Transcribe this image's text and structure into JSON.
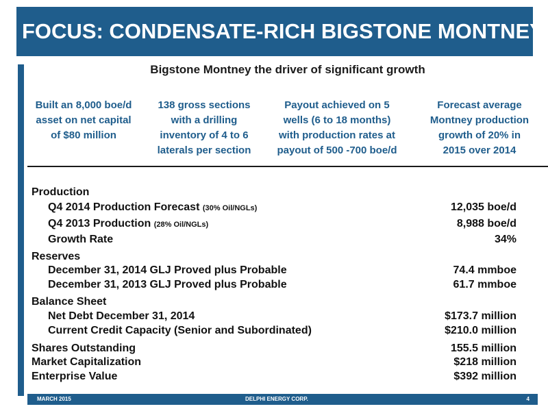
{
  "header": {
    "title": "FOCUS:  CONDENSATE-RICH BIGSTONE MONTNEY"
  },
  "subtitle": "Bigstone Montney the driver of significant growth",
  "highlights": [
    {
      "lines": [
        "Built an 8,000 boe/d",
        "asset on net capital",
        "of $80 million"
      ]
    },
    {
      "lines": [
        "138 gross sections",
        "with a drilling",
        "inventory of 4 to 6",
        "laterals per section"
      ]
    },
    {
      "lines": [
        "Payout achieved on 5",
        "wells (6 to 18 months)",
        "with  production rates at",
        "payout of 500 -700 boe/d"
      ]
    },
    {
      "lines": [
        "Forecast average",
        "Montney production",
        "growth of 20% in",
        "2015 over 2014"
      ]
    }
  ],
  "production": {
    "heading": "Production",
    "q4_2014_label": "Q4 2014 Production Forecast",
    "q4_2014_note": "(30% Oil/NGLs)",
    "q4_2014_value": "12,035 boe/d",
    "q4_2013_label": "Q4 2013 Production",
    "q4_2013_note": "(28% Oil/NGLs)",
    "q4_2013_value": "8,988 boe/d",
    "growth_label": "Growth Rate",
    "growth_value": "34%"
  },
  "reserves": {
    "heading": "Reserves",
    "r2014_label": "December 31, 2014 GLJ Proved plus Probable",
    "r2014_value": "74.4 mmboe",
    "r2013_label": "December 31, 2013 GLJ Proved plus Probable",
    "r2013_value": "61.7 mmboe"
  },
  "balance_sheet": {
    "heading": "Balance Sheet",
    "net_debt_label": "Net Debt December 31, 2014",
    "net_debt_value": "$173.7 million",
    "credit_label": "Current Credit Capacity (Senior and Subordinated)",
    "credit_value": "$210.0 million"
  },
  "capital": {
    "shares_label": "Shares Outstanding",
    "shares_value": "155.5 million",
    "market_cap_label": "Market Capitalization",
    "market_cap_value": "$218 million",
    "ev_label": "Enterprise Value",
    "ev_value": "$392 million"
  },
  "footer": {
    "date": "MARCH 2015",
    "company": "DELPHI ENERGY CORP.",
    "page": "4"
  },
  "colors": {
    "accent": "#1f5d8c",
    "text": "#111111"
  }
}
